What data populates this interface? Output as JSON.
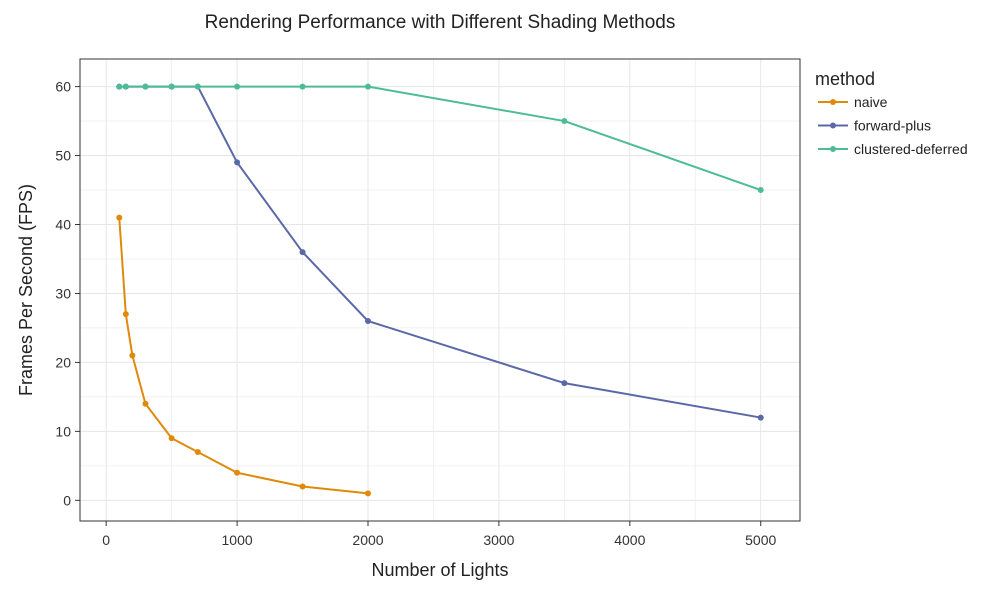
{
  "chart_data": {
    "type": "line",
    "title": "Rendering Performance with Different Shading Methods",
    "xlabel": "Number of Lights",
    "ylabel": "Frames Per Second (FPS)",
    "xlim": [
      -200,
      5300
    ],
    "ylim": [
      -3,
      64
    ],
    "xticks": [
      0,
      1000,
      2000,
      3000,
      4000,
      5000
    ],
    "yticks": [
      0,
      10,
      20,
      30,
      40,
      50,
      60
    ],
    "grid": true,
    "legend": {
      "title": "method",
      "position": "right"
    },
    "series": [
      {
        "name": "naive",
        "color": "#e08a0b",
        "x": [
          100,
          150,
          200,
          300,
          500,
          700,
          1000,
          1500,
          2000
        ],
        "y": [
          41,
          27,
          21,
          14,
          9,
          7,
          4,
          2,
          1
        ]
      },
      {
        "name": "forward-plus",
        "color": "#5b68a8",
        "x": [
          100,
          150,
          300,
          500,
          700,
          1000,
          1500,
          2000,
          3500,
          5000
        ],
        "y": [
          60,
          60,
          60,
          60,
          60,
          49,
          36,
          26,
          17,
          12
        ]
      },
      {
        "name": "clustered-deferred",
        "color": "#4dbb97",
        "x": [
          100,
          150,
          300,
          500,
          700,
          1000,
          1500,
          2000,
          3500,
          5000
        ],
        "y": [
          60,
          60,
          60,
          60,
          60,
          60,
          60,
          60,
          55,
          45
        ]
      }
    ]
  }
}
